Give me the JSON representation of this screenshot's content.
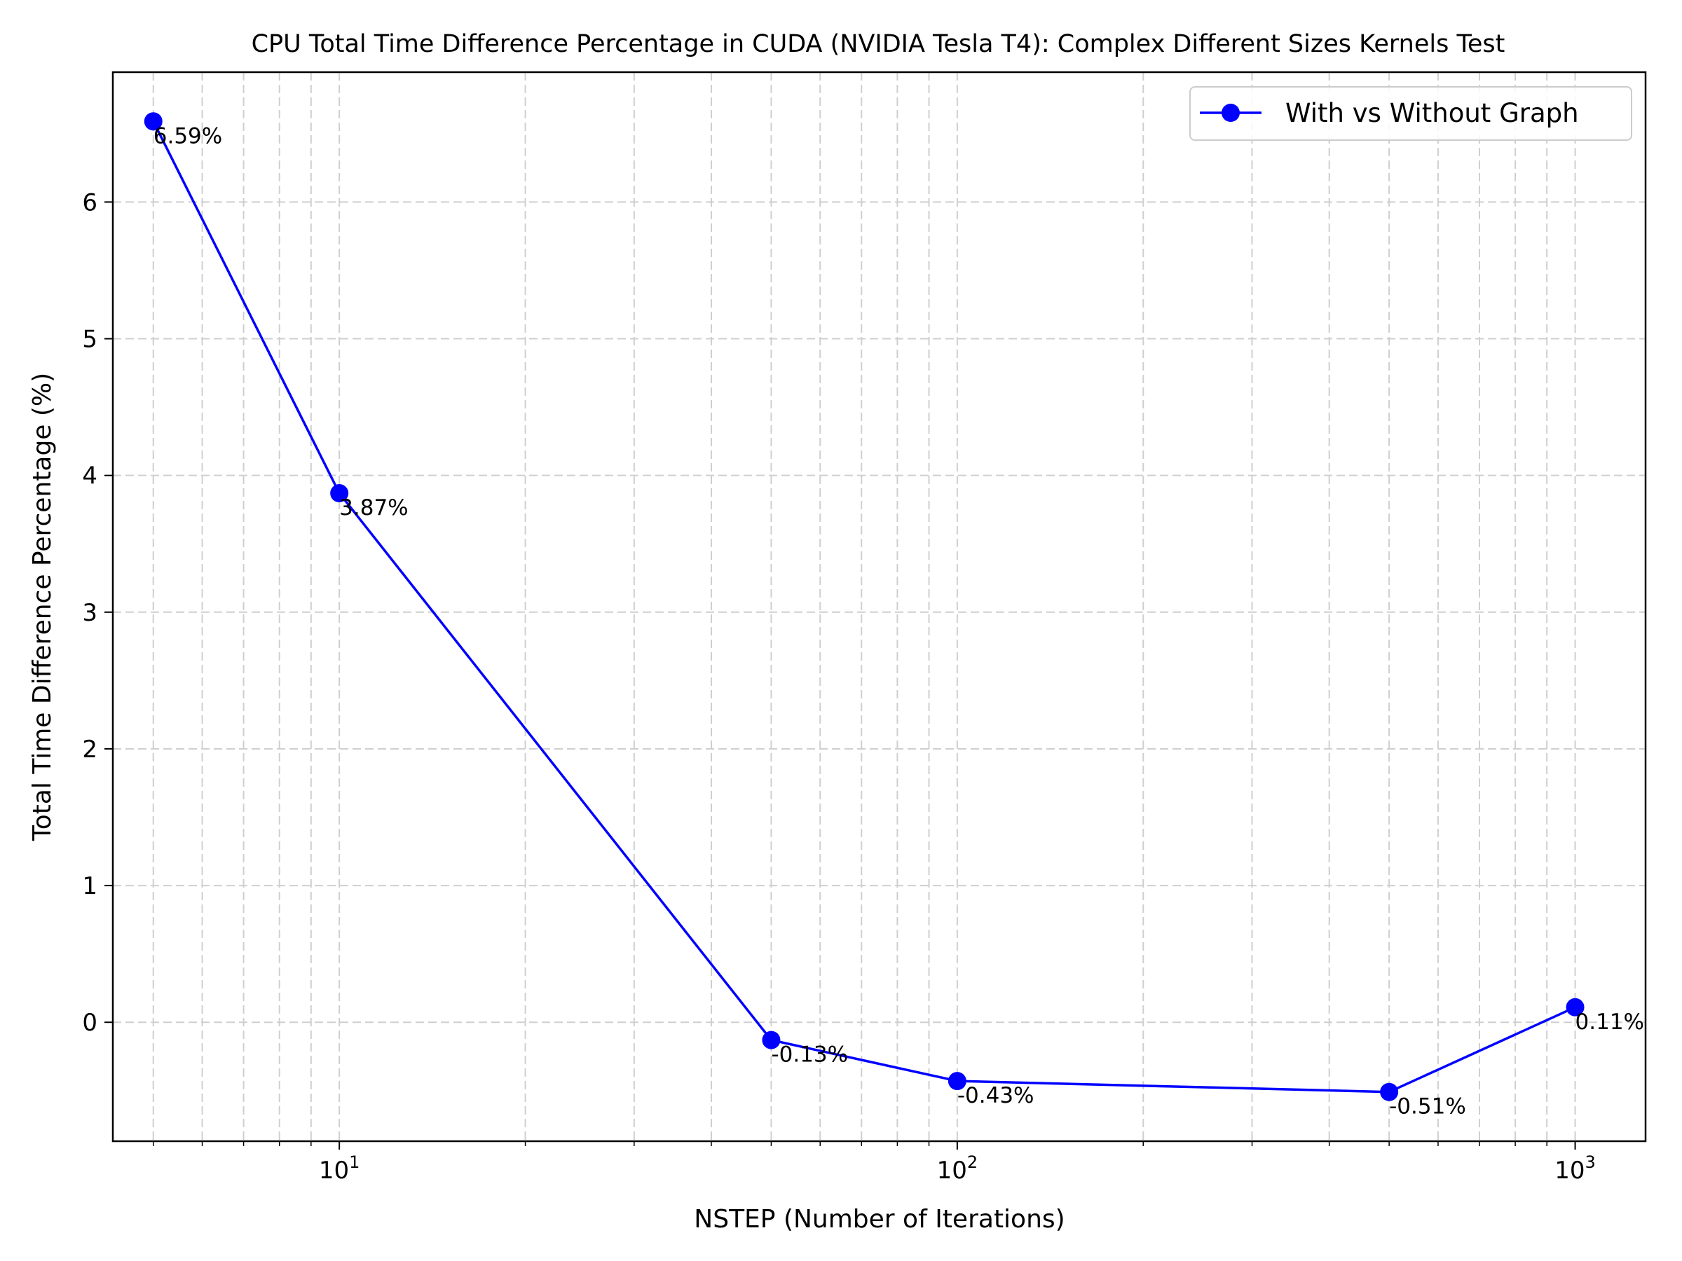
{
  "chart_data": {
    "type": "line",
    "title": "CPU Total Time Difference Percentage in CUDA (NVIDIA Tesla T4): Complex Different Sizes Kernels Test",
    "xlabel": "NSTEP (Number of Iterations)",
    "ylabel": "Total Time Difference Percentage (%)",
    "x_scale": "log",
    "xlim": [
      4.3,
      1300
    ],
    "ylim": [
      -0.87,
      6.95
    ],
    "x_major_ticks": [
      10,
      100,
      1000
    ],
    "x_tick_labels": [
      {
        "base": "10",
        "exp": "1"
      },
      {
        "base": "10",
        "exp": "2"
      },
      {
        "base": "10",
        "exp": "3"
      }
    ],
    "x_minor_ticks": [
      5,
      6,
      7,
      8,
      9,
      20,
      30,
      40,
      50,
      60,
      70,
      80,
      90,
      200,
      300,
      400,
      500,
      600,
      700,
      800,
      900
    ],
    "y_ticks": [
      0,
      1,
      2,
      3,
      4,
      5,
      6
    ],
    "y_tick_labels": [
      "0",
      "1",
      "2",
      "3",
      "4",
      "5",
      "6"
    ],
    "grid": true,
    "legend_position": "top-right",
    "series": [
      {
        "name": "With vs Without Graph",
        "color": "#0000ff",
        "marker": "circle",
        "x": [
          5,
          10,
          50,
          100,
          500,
          1000
        ],
        "y": [
          6.59,
          3.87,
          -0.13,
          -0.43,
          -0.51,
          0.11
        ],
        "labels": [
          "6.59%",
          "3.87%",
          "-0.13%",
          "-0.43%",
          "-0.51%",
          "0.11%"
        ]
      }
    ]
  }
}
